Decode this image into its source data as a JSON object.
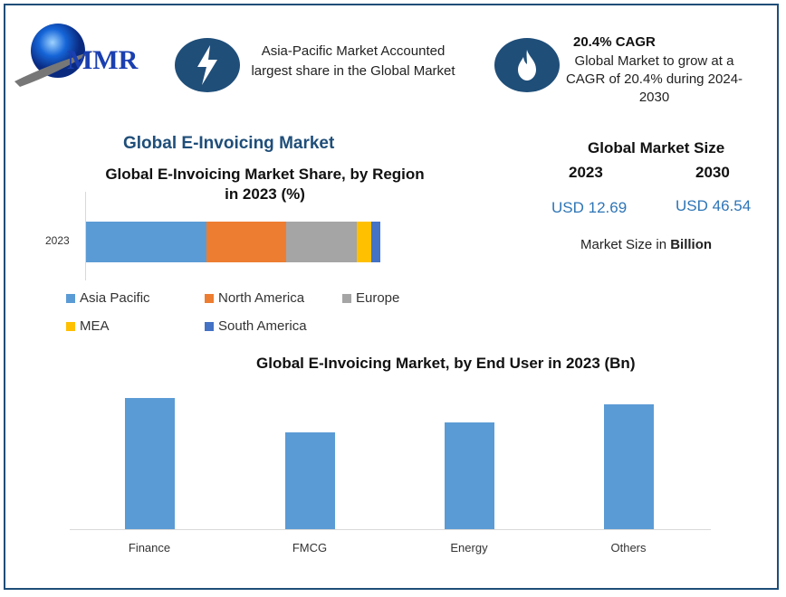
{
  "logo": {
    "text": "MMR"
  },
  "highlights": [
    {
      "icon": "lightning-icon",
      "text": "Asia-Pacific Market Accounted largest share in the Global Market"
    },
    {
      "icon": "flame-icon",
      "title": "20.4% CAGR",
      "text": "Global Market to grow at a CAGR of 20.4% during 2024-2030"
    }
  ],
  "main_title": "Global E-Invoicing Market",
  "market_size": {
    "title": "Global Market Size",
    "year1": "2023",
    "year2": "2030",
    "value1": "USD 12.69",
    "value2": "USD 46.54",
    "unit_prefix": "Market Size in ",
    "unit": "Billion"
  },
  "colors": {
    "frame": "#1f4e79",
    "accent": "#2e75b6",
    "Asia Pacific": "#5b9bd5",
    "North America": "#ed7d31",
    "Europe": "#a5a5a5",
    "MEA": "#ffc000",
    "South America": "#4472c4"
  },
  "chart_data": [
    {
      "type": "bar",
      "orientation": "horizontal-stacked",
      "title": "Global E-Invoicing Market Share, by Region in 2023 (%)",
      "categories": [
        "2023"
      ],
      "series": [
        {
          "name": "Asia Pacific",
          "values": [
            41
          ]
        },
        {
          "name": "North America",
          "values": [
            27
          ]
        },
        {
          "name": "Europe",
          "values": [
            24
          ]
        },
        {
          "name": "MEA",
          "values": [
            5
          ]
        },
        {
          "name": "South America",
          "values": [
            3
          ]
        }
      ],
      "legend": "bottom"
    },
    {
      "type": "bar",
      "title": "Global E-Invoicing Market, by End User in 2023 (Bn)",
      "categories": [
        "Finance",
        "FMCG",
        "Energy",
        "Others"
      ],
      "values": [
        3.63,
        2.67,
        2.95,
        3.45
      ],
      "grid": false,
      "color": "#5b9bd5"
    }
  ]
}
